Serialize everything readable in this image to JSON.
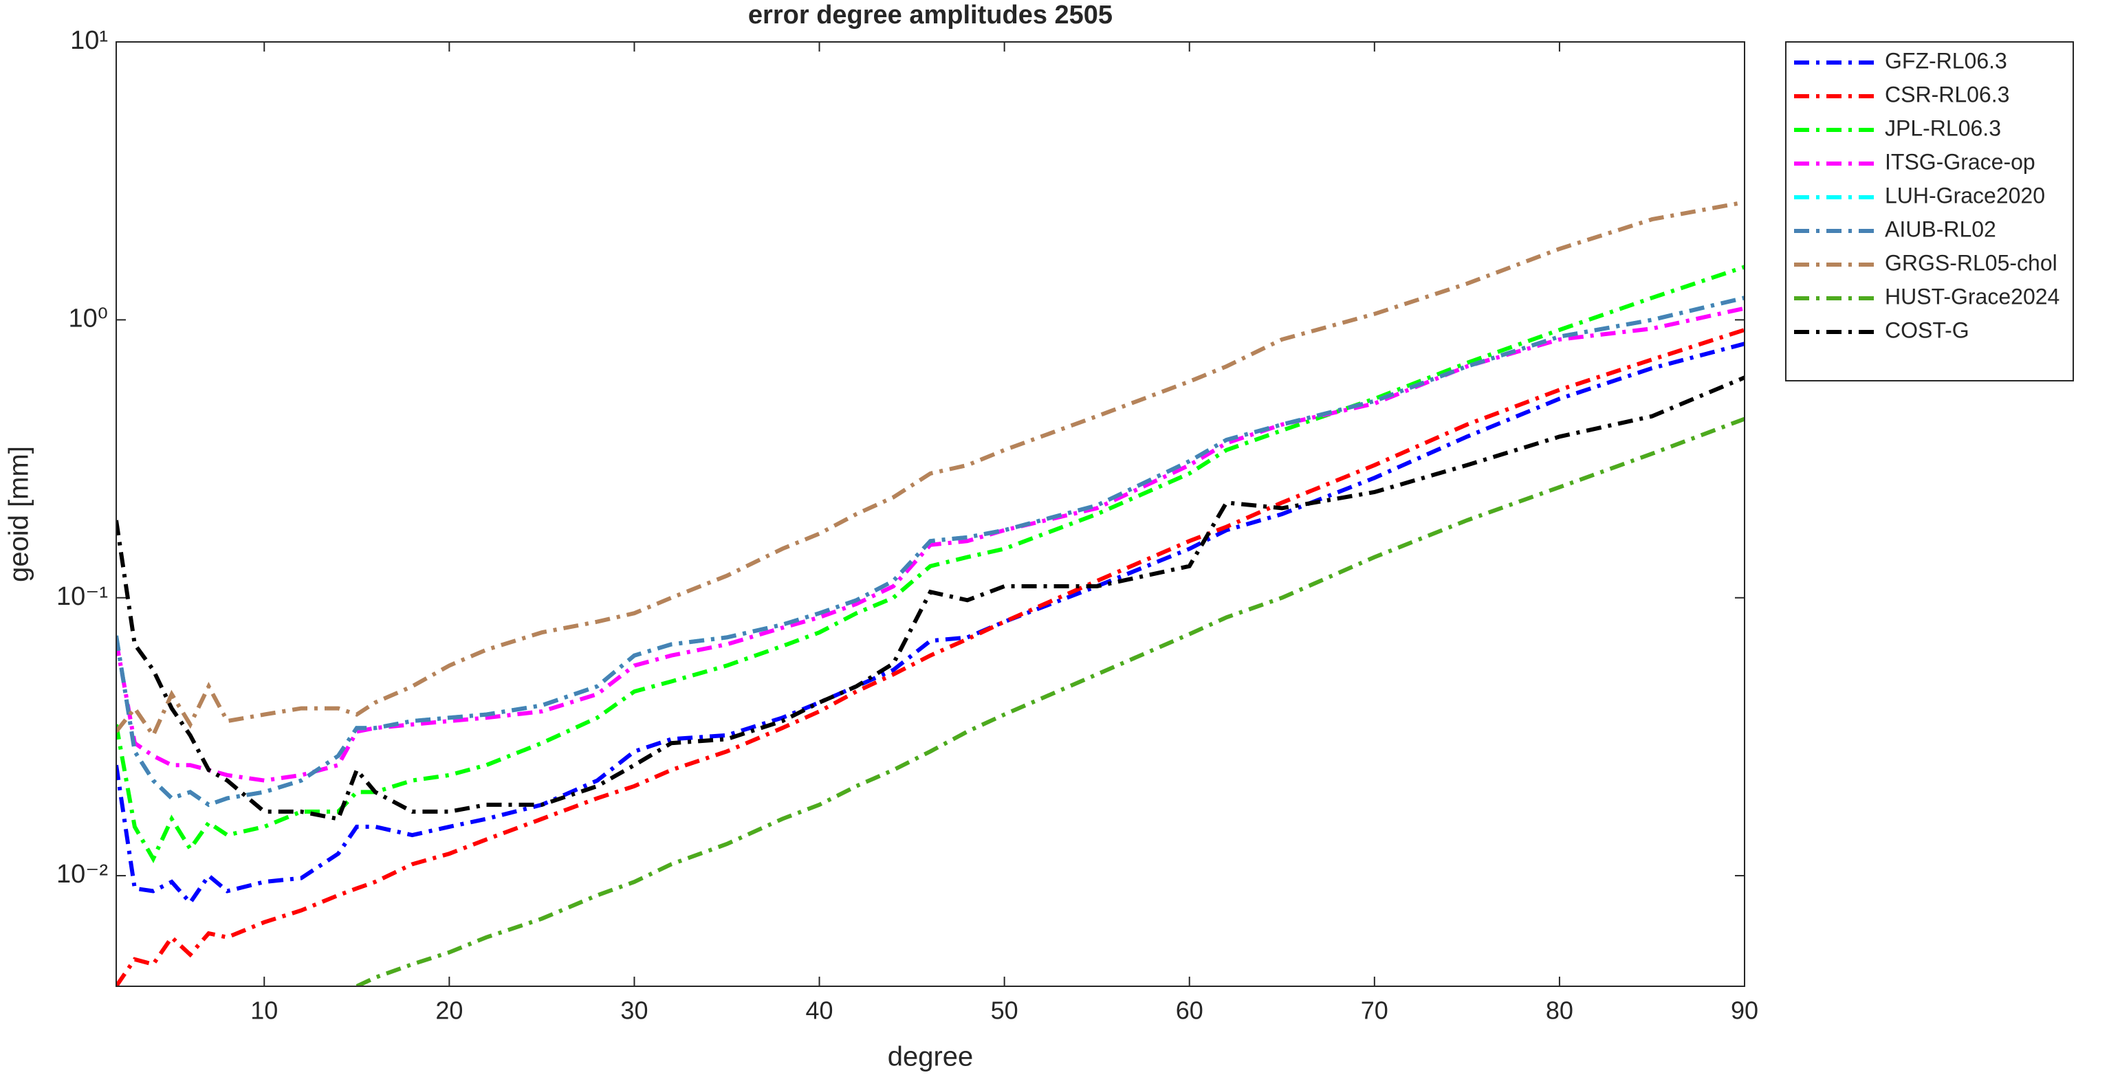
{
  "chart_data": {
    "type": "line",
    "title": "error degree amplitudes 2505",
    "xlabel": "degree",
    "ylabel": "geoid [mm]",
    "xlim": [
      2,
      90
    ],
    "xticks": [
      10,
      20,
      30,
      40,
      50,
      60,
      70,
      80,
      90
    ],
    "ylim": [
      0.004,
      10
    ],
    "yscale": "log",
    "yticks": [
      {
        "value": 0.01,
        "label": "10⁻²"
      },
      {
        "value": 0.1,
        "label": "10⁻¹"
      },
      {
        "value": 1,
        "label": "10⁰"
      },
      {
        "value": 10,
        "label": "10¹"
      }
    ],
    "legend_loc": "northeastoutside",
    "line_style": "dashdot",
    "x": [
      2,
      3,
      4,
      5,
      6,
      7,
      8,
      10,
      12,
      14,
      15,
      16,
      18,
      20,
      22,
      25,
      28,
      30,
      32,
      35,
      38,
      40,
      42,
      44,
      46,
      48,
      50,
      55,
      60,
      62,
      65,
      70,
      75,
      80,
      85,
      90
    ],
    "series": [
      {
        "name": "GFZ-RL06.3",
        "color": "#0000ff",
        "values": [
          0.025,
          0.009,
          0.0088,
          0.0095,
          0.008,
          0.01,
          0.0088,
          0.0095,
          0.0098,
          0.012,
          0.015,
          0.015,
          0.014,
          0.015,
          0.016,
          0.018,
          0.022,
          0.028,
          0.031,
          0.032,
          0.037,
          0.042,
          0.048,
          0.055,
          0.07,
          0.072,
          0.082,
          0.11,
          0.15,
          0.175,
          0.2,
          0.27,
          0.38,
          0.52,
          0.67,
          0.82
        ]
      },
      {
        "name": "CSR-RL06.3",
        "color": "#ff0000",
        "values": [
          0.004,
          0.005,
          0.0048,
          0.006,
          0.0052,
          0.0062,
          0.006,
          0.0068,
          0.0075,
          0.0085,
          0.009,
          0.0095,
          0.011,
          0.012,
          0.0135,
          0.016,
          0.019,
          0.021,
          0.024,
          0.028,
          0.034,
          0.039,
          0.046,
          0.053,
          0.062,
          0.071,
          0.082,
          0.115,
          0.16,
          0.18,
          0.22,
          0.3,
          0.42,
          0.56,
          0.72,
          0.92
        ]
      },
      {
        "name": "JPL-RL06.3",
        "color": "#00ff00",
        "values": [
          0.035,
          0.015,
          0.0115,
          0.016,
          0.0125,
          0.0155,
          0.014,
          0.015,
          0.017,
          0.017,
          0.02,
          0.02,
          0.022,
          0.023,
          0.025,
          0.03,
          0.037,
          0.046,
          0.05,
          0.057,
          0.067,
          0.075,
          0.088,
          0.1,
          0.13,
          0.14,
          0.15,
          0.2,
          0.28,
          0.34,
          0.4,
          0.52,
          0.7,
          0.92,
          1.2,
          1.55
        ]
      },
      {
        "name": "ITSG-Grace-op",
        "color": "#ff00ff",
        "values": [
          0.07,
          0.03,
          0.027,
          0.025,
          0.025,
          0.024,
          0.023,
          0.022,
          0.023,
          0.025,
          0.033,
          0.034,
          0.035,
          0.036,
          0.037,
          0.039,
          0.045,
          0.057,
          0.062,
          0.068,
          0.078,
          0.085,
          0.095,
          0.11,
          0.155,
          0.16,
          0.175,
          0.21,
          0.3,
          0.36,
          0.42,
          0.5,
          0.68,
          0.85,
          0.93,
          1.1
        ]
      },
      {
        "name": "LUH-Grace2020",
        "color": "#00ffff",
        "values": [
          0.073,
          0.028,
          0.022,
          0.019,
          0.02,
          0.018,
          0.019,
          0.02,
          0.022,
          0.027,
          0.034,
          0.034,
          0.036,
          0.037,
          0.038,
          0.041,
          0.048,
          0.062,
          0.068,
          0.072,
          0.08,
          0.088,
          0.098,
          0.115,
          0.16,
          0.165,
          0.175,
          0.215,
          0.31,
          0.37,
          0.42,
          0.51,
          0.68,
          0.87,
          1.0,
          1.2
        ]
      },
      {
        "name": "AIUB-RL02",
        "color": "#4682b4",
        "values": [
          0.073,
          0.028,
          0.022,
          0.019,
          0.02,
          0.018,
          0.019,
          0.02,
          0.022,
          0.027,
          0.034,
          0.034,
          0.036,
          0.037,
          0.038,
          0.041,
          0.048,
          0.062,
          0.068,
          0.072,
          0.08,
          0.088,
          0.098,
          0.115,
          0.16,
          0.165,
          0.175,
          0.215,
          0.31,
          0.37,
          0.42,
          0.51,
          0.68,
          0.87,
          1.0,
          1.2
        ]
      },
      {
        "name": "GRGS-RL05-chol",
        "color": "#b5835a",
        "values": [
          0.033,
          0.04,
          0.032,
          0.045,
          0.035,
          0.048,
          0.036,
          0.038,
          0.04,
          0.04,
          0.038,
          0.042,
          0.048,
          0.057,
          0.065,
          0.075,
          0.082,
          0.088,
          0.1,
          0.12,
          0.15,
          0.17,
          0.2,
          0.23,
          0.28,
          0.3,
          0.34,
          0.45,
          0.6,
          0.68,
          0.85,
          1.05,
          1.35,
          1.8,
          2.3,
          2.65
        ]
      },
      {
        "name": "HUST-Grace2024",
        "color": "#4daa1e",
        "values": [
          null,
          null,
          null,
          null,
          null,
          null,
          null,
          null,
          null,
          null,
          0.004,
          0.0043,
          0.0048,
          0.0053,
          0.006,
          0.007,
          0.0085,
          0.0095,
          0.011,
          0.013,
          0.016,
          0.018,
          0.021,
          0.024,
          0.028,
          0.033,
          0.038,
          0.053,
          0.074,
          0.085,
          0.1,
          0.14,
          0.19,
          0.25,
          0.33,
          0.44
        ]
      },
      {
        "name": "COST-G",
        "color": "#000000",
        "values": [
          0.19,
          0.068,
          0.055,
          0.04,
          0.032,
          0.024,
          0.022,
          0.017,
          0.017,
          0.016,
          0.024,
          0.02,
          0.017,
          0.017,
          0.018,
          0.018,
          0.021,
          0.025,
          0.03,
          0.031,
          0.036,
          0.042,
          0.048,
          0.058,
          0.105,
          0.098,
          0.11,
          0.11,
          0.13,
          0.22,
          0.21,
          0.24,
          0.3,
          0.38,
          0.45,
          0.62
        ]
      }
    ]
  }
}
